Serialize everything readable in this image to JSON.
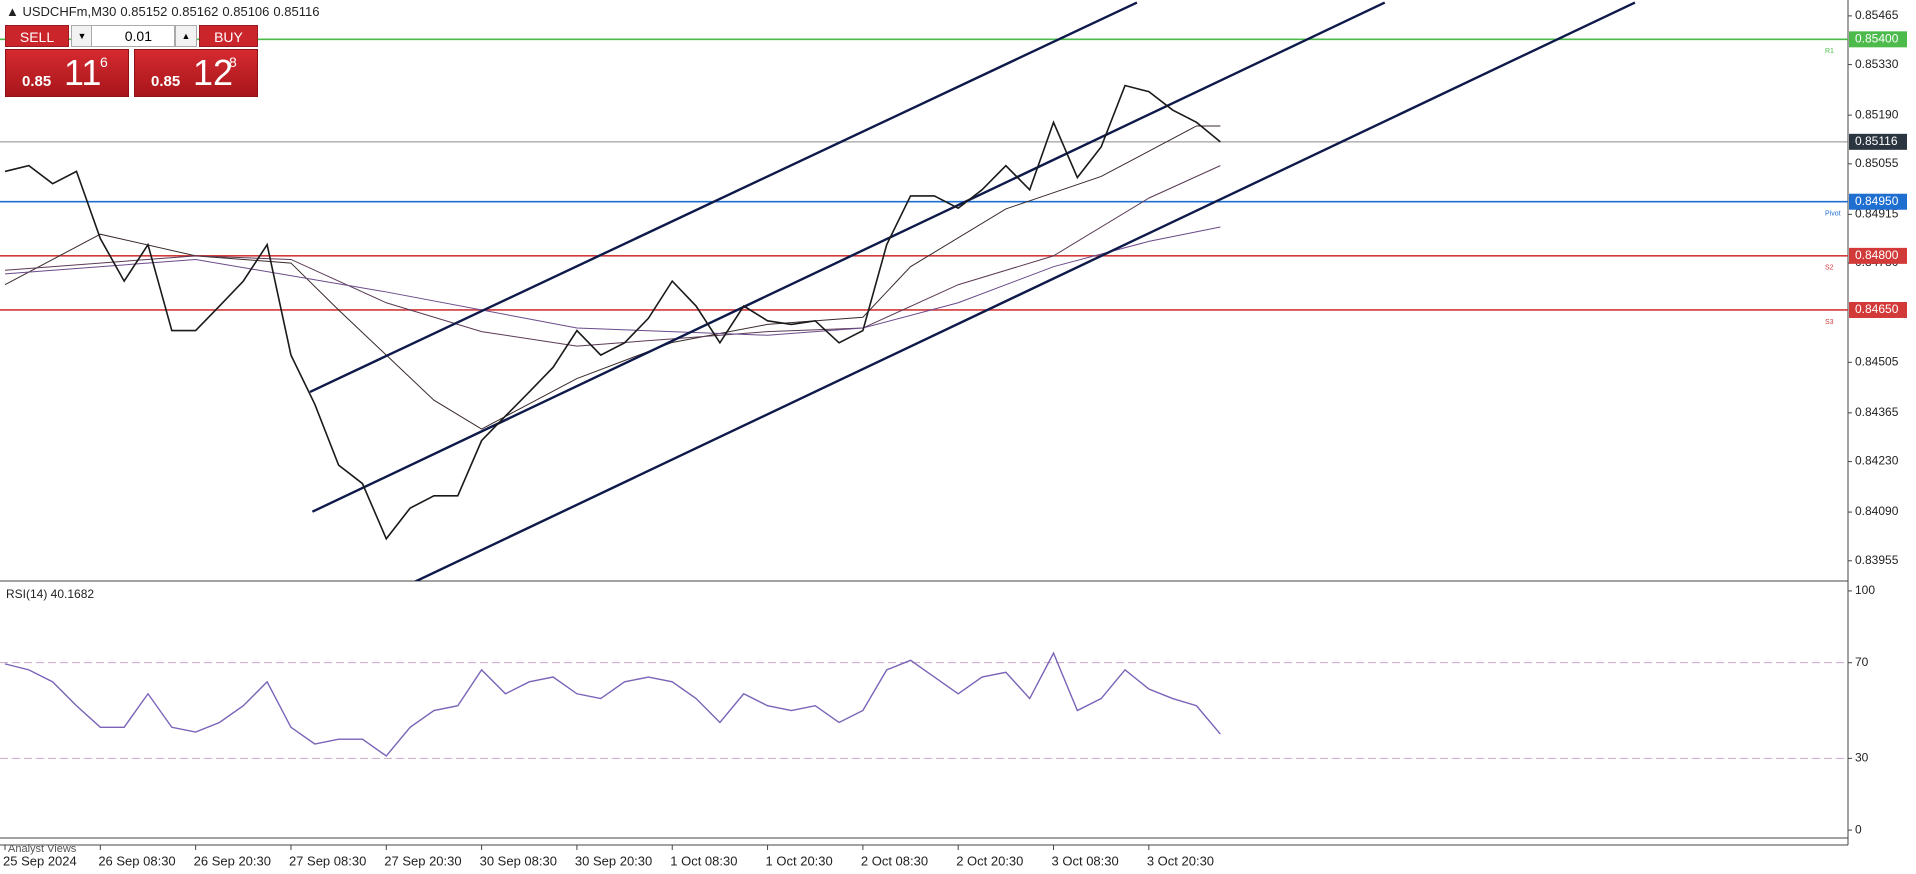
{
  "header": {
    "symbol": "USDCHFm,M30",
    "ohlc": [
      "0.85152",
      "0.85162",
      "0.85106",
      "0.85116"
    ]
  },
  "trade": {
    "sell": "SELL",
    "buy": "BUY",
    "lot": "0.01",
    "sell_price": {
      "prefix": "0.85",
      "big": "11",
      "sup": "6"
    },
    "buy_price": {
      "prefix": "0.85",
      "big": "12",
      "sup": "8"
    }
  },
  "tab": "Analyst Views",
  "chart_data": [
    {
      "type": "line",
      "color": "#1a1a1a",
      "categories": [
        "25 Sep 2024",
        null,
        null,
        null,
        "26 Sep 08:30",
        null,
        null,
        null,
        "26 Sep 20:30",
        null,
        null,
        null,
        "27 Sep 08:30",
        null,
        null,
        null,
        "27 Sep 20:30",
        null,
        null,
        null,
        "30 Sep 08:30",
        null,
        null,
        null,
        "30 Sep 20:30",
        null,
        null,
        null,
        "1 Oct 08:30",
        null,
        null,
        null,
        "1 Oct 20:30",
        null,
        null,
        null,
        "2 Oct 08:30",
        null,
        null,
        null,
        "2 Oct 20:30",
        null,
        null,
        null,
        "3 Oct 08:30",
        null,
        null,
        null,
        "3 Oct 20:30",
        null,
        null,
        null
      ],
      "values": [
        0.85034,
        0.8505,
        0.85,
        0.85034,
        0.84848,
        0.8473,
        0.84831,
        0.84593,
        0.84593,
        0.84661,
        0.8473,
        0.84831,
        0.84525,
        0.84389,
        0.8422,
        0.84169,
        0.84016,
        0.84101,
        0.84135,
        0.84135,
        0.84288,
        0.84356,
        0.84423,
        0.84491,
        0.84593,
        0.84525,
        0.84559,
        0.84627,
        0.8473,
        0.84661,
        0.84559,
        0.84661,
        0.8462,
        0.8461,
        0.8462,
        0.84559,
        0.84593,
        0.84831,
        0.84966,
        0.84966,
        0.84932,
        0.84983,
        0.8505,
        0.84983,
        0.8517,
        0.85017,
        0.85102,
        0.85272,
        0.85255,
        0.85204,
        0.8517,
        0.85116
      ],
      "ylim": [
        0.83899,
        0.85509
      ],
      "yticks": [
        {
          "value": 0.85465,
          "label": "0.85465"
        },
        {
          "value": 0.8533,
          "label": "0.85330"
        },
        {
          "value": 0.8519,
          "label": "0.85190"
        },
        {
          "value": 0.85055,
          "label": "0.85055"
        },
        {
          "value": 0.84915,
          "label": "0.84915"
        },
        {
          "value": 0.8478,
          "label": "0.84780"
        },
        {
          "value": 0.84505,
          "label": "0.84505"
        },
        {
          "value": 0.84365,
          "label": "0.84365"
        },
        {
          "value": 0.8423,
          "label": "0.84230"
        },
        {
          "value": 0.8409,
          "label": "0.84090"
        },
        {
          "value": 0.83955,
          "label": "0.83955"
        }
      ],
      "levels": [
        {
          "value": 0.854,
          "label": "0.85400",
          "name": "R1",
          "color": "#4cbb4c"
        },
        {
          "value": 0.85116,
          "label": "0.85116",
          "color": "#8a8a8a",
          "label_bg": "#2b3540"
        },
        {
          "value": 0.8495,
          "label": "0.84950",
          "name": "Pivot",
          "color": "#1f6fd1"
        },
        {
          "value": 0.848,
          "label": "0.84800",
          "name": "S2",
          "color": "#d23a3a"
        },
        {
          "value": 0.8465,
          "label": "0.84650",
          "name": "S3",
          "color": "#d23a3a"
        }
      ],
      "indicators": [
        {
          "color": "#3a2a2a",
          "x": [
            0,
            4,
            8,
            12,
            14,
            18,
            20,
            24,
            28,
            32,
            36,
            38,
            42,
            46,
            50,
            51
          ],
          "values": [
            0.8472,
            0.8486,
            0.848,
            0.8478,
            0.8465,
            0.844,
            0.8432,
            0.8446,
            0.8456,
            0.8461,
            0.8463,
            0.8477,
            0.8493,
            0.8502,
            0.8516,
            0.8516
          ]
        },
        {
          "color": "#5a3a55",
          "x": [
            0,
            8,
            12,
            16,
            20,
            24,
            28,
            32,
            36,
            40,
            44,
            48,
            51
          ],
          "values": [
            0.8476,
            0.848,
            0.8479,
            0.8467,
            0.8459,
            0.8455,
            0.8457,
            0.8459,
            0.846,
            0.8472,
            0.848,
            0.8496,
            0.8505
          ]
        },
        {
          "color": "#6a4a8a",
          "x": [
            0,
            8,
            16,
            24,
            32,
            36,
            40,
            44,
            48,
            51
          ],
          "values": [
            0.8475,
            0.8479,
            0.847,
            0.846,
            0.8458,
            0.846,
            0.8467,
            0.8477,
            0.8484,
            0.8488
          ]
        }
      ],
      "trendlines": [
        {
          "color": "#0d1a4a",
          "x": [
            12.8,
            47.5
          ],
          "values": [
            0.84423,
            0.85502
          ]
        },
        {
          "color": "#0d1a4a",
          "x": [
            12.9,
            57.9
          ],
          "values": [
            0.84091,
            0.85502
          ]
        },
        {
          "color": "#0d1a4a",
          "x": [
            17.2,
            68.4
          ],
          "values": [
            0.83897,
            0.85502
          ]
        }
      ]
    },
    {
      "type": "line",
      "title": "RSI(14) 40.1682",
      "color": "#7a63b8",
      "values": [
        69.5,
        67,
        62,
        52,
        43,
        43,
        57,
        43,
        41,
        45,
        52,
        62,
        43,
        36,
        38,
        38,
        31,
        43,
        50,
        52,
        67,
        57,
        62,
        64,
        57,
        55,
        62,
        64,
        62,
        55,
        45,
        57,
        52,
        50,
        52,
        45,
        50,
        67,
        71,
        64,
        57,
        64,
        66,
        55,
        74,
        50,
        55,
        67,
        59,
        55,
        52,
        40.17
      ],
      "ylim": [
        -3.3,
        102.9
      ],
      "yticks": [
        0,
        30,
        70,
        100
      ],
      "levels": [
        30,
        70
      ]
    }
  ]
}
